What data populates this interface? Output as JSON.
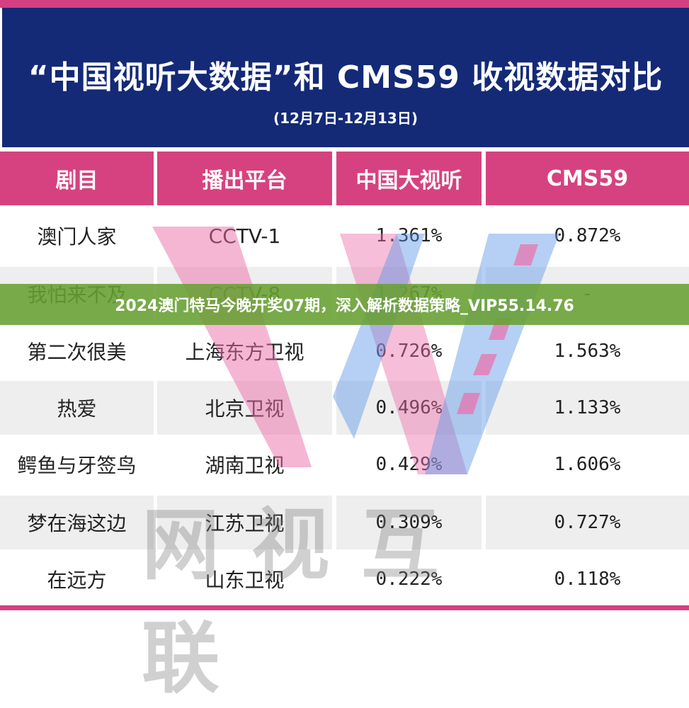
{
  "title": "“中国视听大数据”和 CMS59 收视数据对比",
  "subtitle": "(12月7日-12月13日)",
  "headers": [
    "剧目",
    "播出平台",
    "中国大视听",
    "CMS59"
  ],
  "rows": [
    [
      "澳门人家",
      "CCTV-1",
      "1.361%",
      "0.872%"
    ],
    [
      "我怕来不及",
      "CCTV-8",
      "1.267%",
      "-"
    ],
    [
      "第二次很美",
      "上海东方卫视",
      "0.726%",
      "1.563%"
    ],
    [
      "热爱",
      "北京卫视",
      "0.496%",
      "1.133%"
    ],
    [
      "鳄鱼与牙签鸟",
      "湖南卫视",
      "0.429%",
      "1.606%"
    ],
    [
      "梦在海这边",
      "江苏卫视",
      "0.309%",
      "0.727%"
    ],
    [
      "在远方",
      "山东卫视",
      "0.222%",
      "0.118%"
    ]
  ],
  "watermark": "网视互联",
  "banner": "2024澳门特马今晚开奖07期，深入解析数据策略_VIP55.14.76"
}
